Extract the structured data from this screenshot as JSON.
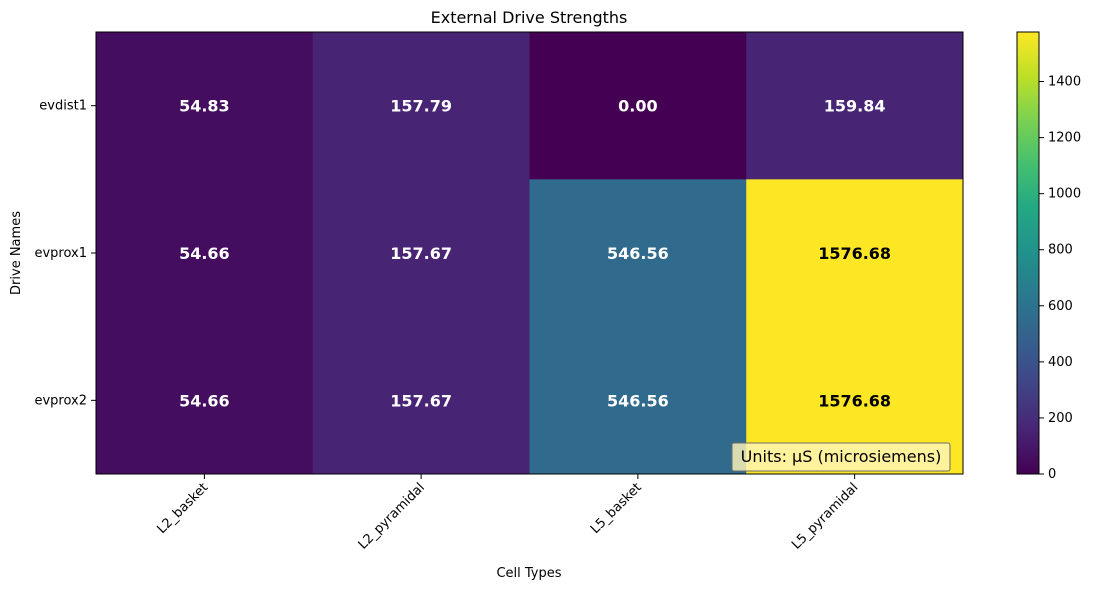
{
  "chart_data": {
    "type": "heatmap",
    "title": "External Drive Strengths",
    "xlabel": "Cell Types",
    "ylabel": "Drive Names",
    "x_categories": [
      "L2_basket",
      "L2_pyramidal",
      "L5_basket",
      "L5_pyramidal"
    ],
    "y_categories": [
      "evdist1",
      "evprox1",
      "evprox2"
    ],
    "values": [
      [
        54.83,
        157.79,
        0.0,
        159.84
      ],
      [
        54.66,
        157.67,
        546.56,
        1576.68
      ],
      [
        54.66,
        157.67,
        546.56,
        1576.68
      ]
    ],
    "value_labels": [
      [
        "54.83",
        "157.79",
        "0.00",
        "159.84"
      ],
      [
        "54.66",
        "157.67",
        "546.56",
        "1576.68"
      ],
      [
        "54.66",
        "157.67",
        "546.56",
        "1576.68"
      ]
    ],
    "colormap": "viridis",
    "vmin": 0,
    "vmax": 1576.68,
    "colorbar_ticks": [
      0,
      200,
      400,
      600,
      800,
      1000,
      1200,
      1400
    ],
    "annotation": "Units: μS (microsiemens)",
    "grid": false
  }
}
